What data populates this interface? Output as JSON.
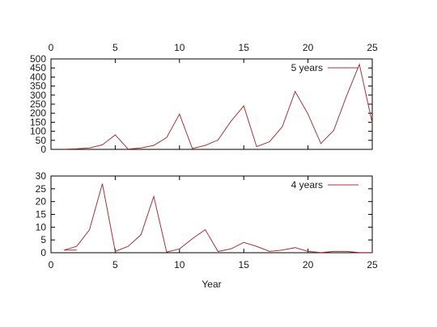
{
  "colors": {
    "series": "#a5343a",
    "axis": "#000000",
    "text": "#1a1a1a"
  },
  "chart_data": [
    {
      "type": "line",
      "title": "",
      "xlabel": "",
      "ylabel": "",
      "xlim": [
        0,
        25
      ],
      "ylim": [
        0,
        500
      ],
      "xticks": [
        0,
        5,
        10,
        15,
        20,
        25
      ],
      "x_tick_position": "top",
      "yticks": [
        0,
        50,
        100,
        150,
        200,
        250,
        300,
        350,
        400,
        450,
        500
      ],
      "grid": false,
      "legend_position": "top-right",
      "series": [
        {
          "name": "5 years",
          "x": [
            1,
            2,
            3,
            4,
            5,
            6,
            7,
            8,
            9,
            10,
            11,
            12,
            13,
            14,
            15,
            16,
            17,
            18,
            19,
            20,
            21,
            22,
            23,
            24,
            25
          ],
          "y": [
            1,
            3,
            8,
            25,
            80,
            2,
            8,
            22,
            65,
            195,
            5,
            22,
            52,
            155,
            240,
            15,
            42,
            125,
            320,
            195,
            32,
            105,
            295,
            470,
            145
          ]
        }
      ]
    },
    {
      "type": "line",
      "title": "",
      "xlabel": "Year",
      "ylabel": "",
      "xlim": [
        0,
        25
      ],
      "ylim": [
        0,
        30
      ],
      "xticks": [
        0,
        5,
        10,
        15,
        20,
        25
      ],
      "x_tick_position": "bottom",
      "yticks": [
        0,
        5,
        10,
        15,
        20,
        25,
        30
      ],
      "grid": false,
      "legend_position": "top-right",
      "series": [
        {
          "name": "4 years",
          "x": [
            1,
            2,
            1,
            2,
            3,
            4,
            5,
            6,
            7,
            8,
            9,
            10,
            11,
            12,
            13,
            14,
            15,
            16,
            17,
            18,
            19,
            20,
            21,
            22,
            23,
            24,
            25
          ],
          "y": [
            1,
            1,
            1,
            2.5,
            9,
            27,
            0.5,
            2.5,
            7,
            22,
            0.3,
            1.5,
            5.5,
            9,
            0.5,
            1.5,
            4,
            2.5,
            0.5,
            1,
            2,
            0.5,
            0.1,
            0.5,
            0.5,
            0.1,
            0.1
          ]
        }
      ]
    }
  ]
}
